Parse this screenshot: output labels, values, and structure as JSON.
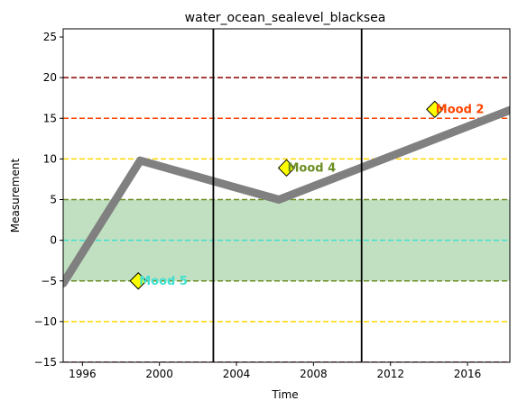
{
  "chart_data": {
    "type": "line",
    "title": "water_ocean_sealevel_blacksea",
    "xlabel": "Time",
    "ylabel": "Measurement",
    "xlim": [
      1995.0,
      2018.2
    ],
    "ylim": [
      -15,
      26
    ],
    "x_ticks": [
      1996,
      2000,
      2004,
      2008,
      2012,
      2016
    ],
    "y_ticks": [
      -15,
      -10,
      -5,
      0,
      5,
      10,
      15,
      20,
      25
    ],
    "series": [
      {
        "color": "#808080",
        "points": [
          [
            1995.0,
            -5.3
          ],
          [
            1999.0,
            9.8
          ],
          [
            2006.2,
            5.0
          ],
          [
            2018.2,
            16.0
          ]
        ]
      }
    ],
    "shaded_band": {
      "y0": -5,
      "y1": 5,
      "color": "#c1e0c1"
    },
    "hlines": [
      {
        "y": 20,
        "color": "#8b0000",
        "style": "dashed"
      },
      {
        "y": 15,
        "color": "#ff4500",
        "style": "dashed"
      },
      {
        "y": 10,
        "color": "#ffd700",
        "style": "dashed"
      },
      {
        "y": 5,
        "color": "#6b8e23",
        "style": "dashed"
      },
      {
        "y": 0,
        "color": "#40e0d0",
        "style": "dashed"
      },
      {
        "y": -5,
        "color": "#6b8e23",
        "style": "dashed"
      },
      {
        "y": -10,
        "color": "#ffd700",
        "style": "dashed"
      },
      {
        "y": -15,
        "color": "#8b0000",
        "style": "dashed"
      }
    ],
    "vlines": [
      {
        "x": 2002.8,
        "color": "#000000"
      },
      {
        "x": 2010.5,
        "color": "#000000"
      }
    ],
    "annotations": [
      {
        "text": "Mood 5",
        "x": 1998.9,
        "y": -5.0,
        "text_color": "#40e0d0",
        "marker_color": "#ffff00"
      },
      {
        "text": "Mood 4",
        "x": 2006.6,
        "y": 8.9,
        "text_color": "#6b8e23",
        "marker_color": "#ffff00"
      },
      {
        "text": "Mood 2",
        "x": 2014.3,
        "y": 16.1,
        "text_color": "#ff4500",
        "marker_color": "#ffff00"
      }
    ],
    "grid": false,
    "legend": "none"
  }
}
